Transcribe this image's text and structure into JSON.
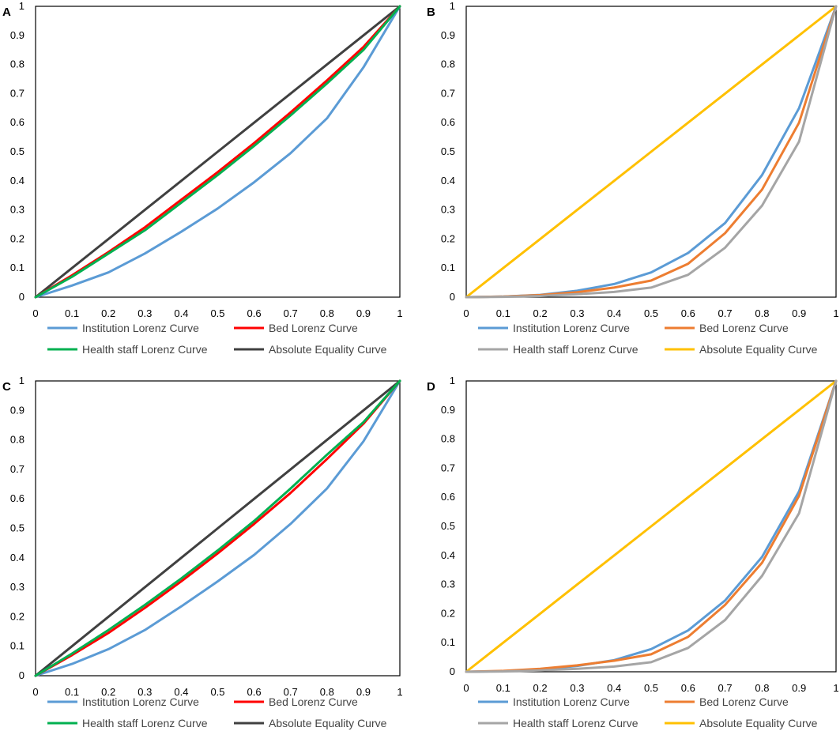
{
  "chart_data": [
    {
      "panel": "A",
      "type": "line",
      "xlim": [
        0,
        1
      ],
      "ylim": [
        0,
        1
      ],
      "x_ticks": [
        "0",
        "0.1",
        "0.2",
        "0.3",
        "0.4",
        "0.5",
        "0.6",
        "0.7",
        "0.8",
        "0.9",
        "1"
      ],
      "y_ticks": [
        "0",
        "0.1",
        "0.2",
        "0.3",
        "0.4",
        "0.5",
        "0.6",
        "0.7",
        "0.8",
        "0.9",
        "1"
      ],
      "x": [
        0,
        0.1,
        0.2,
        0.3,
        0.4,
        0.5,
        0.6,
        0.7,
        0.8,
        0.9,
        1
      ],
      "series": [
        {
          "name": "Institution Lorenz Curve",
          "color": "#5B9BD5",
          "values": [
            0,
            0.04,
            0.085,
            0.15,
            0.225,
            0.305,
            0.395,
            0.495,
            0.615,
            0.79,
            1
          ]
        },
        {
          "name": "Bed Lorenz Curve",
          "color": "#FF0000",
          "values": [
            0,
            0.075,
            0.155,
            0.24,
            0.335,
            0.43,
            0.53,
            0.635,
            0.745,
            0.86,
            1
          ]
        },
        {
          "name": "Health staff Lorenz Curve",
          "color": "#00B050",
          "values": [
            0,
            0.07,
            0.15,
            0.23,
            0.325,
            0.42,
            0.52,
            0.625,
            0.735,
            0.85,
            1
          ]
        },
        {
          "name": "Absolute Equality Curve",
          "color": "#404040",
          "values": [
            0,
            0.1,
            0.2,
            0.3,
            0.4,
            0.5,
            0.6,
            0.7,
            0.8,
            0.9,
            1
          ]
        }
      ]
    },
    {
      "panel": "B",
      "type": "line",
      "xlim": [
        0,
        1
      ],
      "ylim": [
        0,
        1
      ],
      "x_ticks": [
        "0",
        "0.1",
        "0.2",
        "0.3",
        "0.4",
        "0.5",
        "0.6",
        "0.7",
        "0.8",
        "0.9",
        "1"
      ],
      "y_ticks": [
        "0",
        "0.1",
        "0.2",
        "0.3",
        "0.4",
        "0.5",
        "0.6",
        "0.7",
        "0.8",
        "0.9",
        "1"
      ],
      "x": [
        0,
        0.1,
        0.2,
        0.3,
        0.4,
        0.5,
        0.6,
        0.7,
        0.8,
        0.9,
        1
      ],
      "series": [
        {
          "name": "Institution Lorenz Curve",
          "color": "#5B9BD5",
          "values": [
            0,
            0.002,
            0.008,
            0.022,
            0.045,
            0.085,
            0.152,
            0.255,
            0.42,
            0.65,
            1
          ]
        },
        {
          "name": "Bed Lorenz Curve",
          "color": "#ED7D31",
          "values": [
            0,
            0.002,
            0.007,
            0.017,
            0.033,
            0.057,
            0.115,
            0.22,
            0.37,
            0.6,
            1
          ]
        },
        {
          "name": "Health staff Lorenz Curve",
          "color": "#A5A5A5",
          "values": [
            0,
            0.001,
            0.004,
            0.01,
            0.018,
            0.033,
            0.077,
            0.17,
            0.315,
            0.535,
            1
          ]
        },
        {
          "name": "Absolute Equality Curve",
          "color": "#FFC000",
          "values": [
            0,
            0.1,
            0.2,
            0.3,
            0.4,
            0.5,
            0.6,
            0.7,
            0.8,
            0.9,
            1
          ]
        }
      ]
    },
    {
      "panel": "C",
      "type": "line",
      "xlim": [
        0,
        1
      ],
      "ylim": [
        0,
        1
      ],
      "x_ticks": [
        "0",
        "0.1",
        "0.2",
        "0.3",
        "0.4",
        "0.5",
        "0.6",
        "0.7",
        "0.8",
        "0.9",
        "1"
      ],
      "y_ticks": [
        "0",
        "0.1",
        "0.2",
        "0.3",
        "0.4",
        "0.5",
        "0.6",
        "0.7",
        "0.8",
        "0.9",
        "1"
      ],
      "x": [
        0,
        0.1,
        0.2,
        0.3,
        0.4,
        0.5,
        0.6,
        0.7,
        0.8,
        0.9,
        1
      ],
      "series": [
        {
          "name": "Institution Lorenz Curve",
          "color": "#5B9BD5",
          "values": [
            0,
            0.04,
            0.09,
            0.155,
            0.235,
            0.32,
            0.41,
            0.515,
            0.635,
            0.795,
            1
          ]
        },
        {
          "name": "Bed Lorenz Curve",
          "color": "#FF0000",
          "values": [
            0,
            0.07,
            0.145,
            0.23,
            0.32,
            0.415,
            0.515,
            0.62,
            0.735,
            0.855,
            1
          ]
        },
        {
          "name": "Health staff Lorenz Curve",
          "color": "#00B050",
          "values": [
            0,
            0.075,
            0.155,
            0.24,
            0.33,
            0.425,
            0.525,
            0.635,
            0.75,
            0.86,
            1
          ]
        },
        {
          "name": "Absolute Equality Curve",
          "color": "#404040",
          "values": [
            0,
            0.1,
            0.2,
            0.3,
            0.4,
            0.5,
            0.6,
            0.7,
            0.8,
            0.9,
            1
          ]
        }
      ]
    },
    {
      "panel": "D",
      "type": "line",
      "xlim": [
        0,
        1
      ],
      "ylim": [
        0,
        1
      ],
      "x_ticks": [
        "0",
        "0.1",
        "0.2",
        "0.3",
        "0.4",
        "0.5",
        "0.6",
        "0.7",
        "0.8",
        "0.9",
        "1"
      ],
      "y_ticks": [
        "0",
        "0.1",
        "0.2",
        "0.3",
        "0.4",
        "0.5",
        "0.6",
        "0.7",
        "0.8",
        "0.9",
        "1"
      ],
      "x": [
        0,
        0.1,
        0.2,
        0.3,
        0.4,
        0.5,
        0.6,
        0.7,
        0.8,
        0.9,
        1
      ],
      "series": [
        {
          "name": "Institution Lorenz Curve",
          "color": "#5B9BD5",
          "values": [
            0,
            0.002,
            0.008,
            0.02,
            0.04,
            0.078,
            0.142,
            0.245,
            0.395,
            0.62,
            1
          ]
        },
        {
          "name": "Bed Lorenz Curve",
          "color": "#ED7D31",
          "values": [
            0,
            0.003,
            0.01,
            0.022,
            0.038,
            0.06,
            0.12,
            0.23,
            0.375,
            0.605,
            1
          ]
        },
        {
          "name": "Health staff Lorenz Curve",
          "color": "#A5A5A5",
          "values": [
            0,
            0.001,
            0.005,
            0.01,
            0.018,
            0.033,
            0.082,
            0.178,
            0.33,
            0.545,
            1
          ]
        },
        {
          "name": "Absolute Equality Curve",
          "color": "#FFC000",
          "values": [
            0,
            0.1,
            0.2,
            0.3,
            0.4,
            0.5,
            0.6,
            0.7,
            0.8,
            0.9,
            1
          ]
        }
      ]
    }
  ]
}
